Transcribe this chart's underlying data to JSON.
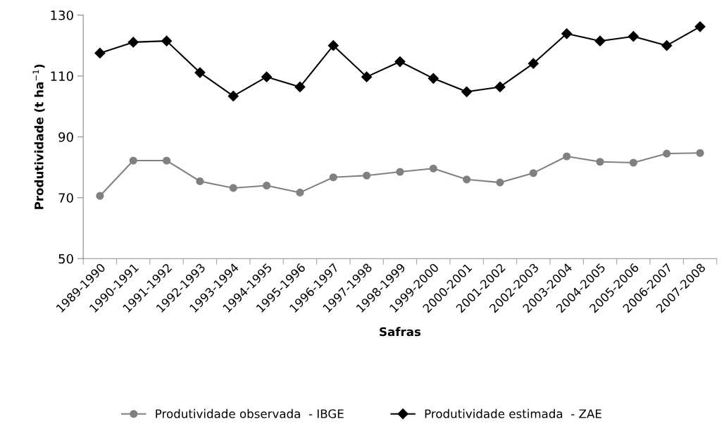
{
  "chart_data": {
    "type": "line",
    "xlabel": "Safras",
    "ylabel": "Produtividade (t ha$^{−1}$)",
    "categories": [
      "1989-1990",
      "1990-1991",
      "1991-1992",
      "1992-1993",
      "1993-1994",
      "1994-1995",
      "1995-1996",
      "1996-1997",
      "1997-1998",
      "1998-1999",
      "1999-2000",
      "2000-2001",
      "2001-2002",
      "2002-2003",
      "2003-2004",
      "2004-2005",
      "2005-2006",
      "2006-2007",
      "2007-2008"
    ],
    "series": [
      {
        "name": "Produtividade observada  - IBGE",
        "color": "#808080",
        "marker": "circle",
        "values": [
          70.6,
          82.2,
          82.2,
          75.4,
          73.2,
          74.0,
          71.7,
          76.7,
          77.3,
          78.5,
          79.6,
          76.0,
          75.0,
          78.1,
          83.6,
          81.8,
          81.5,
          84.5,
          84.7
        ]
      },
      {
        "name": "Produtividade estimada  - ZAE",
        "color": "#000000",
        "marker": "diamond",
        "values": [
          117.5,
          121.1,
          121.5,
          111.1,
          103.4,
          109.7,
          106.4,
          120.0,
          109.7,
          114.7,
          109.2,
          104.8,
          106.4,
          114.1,
          123.9,
          121.5,
          123.0,
          120.0,
          126.2
        ]
      }
    ],
    "ylim": [
      50,
      130
    ],
    "yticks": [
      50,
      70,
      90,
      110,
      130
    ],
    "grid": false,
    "legend": "bottom",
    "line_style": "solid"
  }
}
